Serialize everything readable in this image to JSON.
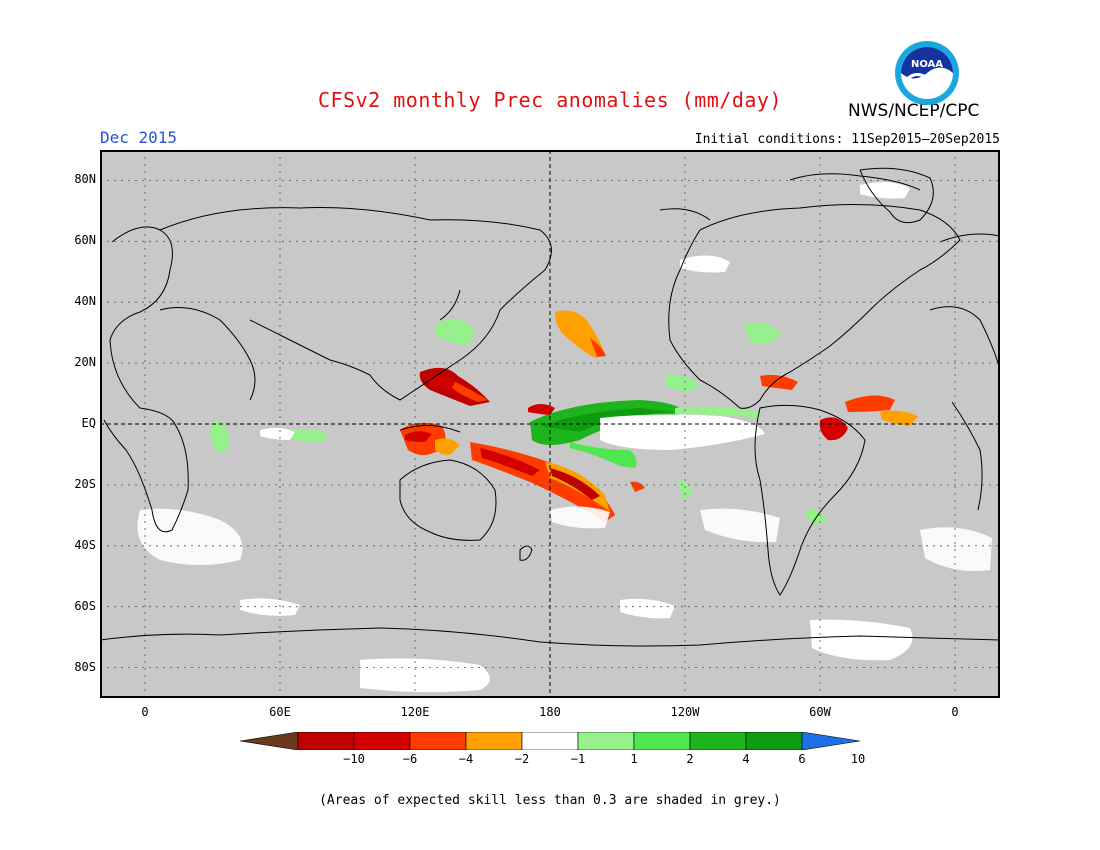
{
  "header": {
    "title": "CFSv2 monthly Prec anomalies (mm/day)",
    "month": "Dec 2015",
    "initial_conditions": "Initial conditions: 11Sep2015–20Sep2015",
    "org": "NWS/NCEP/CPC",
    "logo_text": "NOAA"
  },
  "map": {
    "projection": "cylindrical equidistant",
    "lon_range": [
      -20,
      380
    ],
    "lat_range": [
      -90,
      90
    ],
    "y_ticks": [
      {
        "lat": 80,
        "label": "80N"
      },
      {
        "lat": 60,
        "label": "60N"
      },
      {
        "lat": 40,
        "label": "40N"
      },
      {
        "lat": 20,
        "label": "20N"
      },
      {
        "lat": 0,
        "label": "EQ"
      },
      {
        "lat": -20,
        "label": "20S"
      },
      {
        "lat": -40,
        "label": "40S"
      },
      {
        "lat": -60,
        "label": "60S"
      },
      {
        "lat": -80,
        "label": "80S"
      }
    ],
    "x_ticks": [
      {
        "lon": 0,
        "label": "0"
      },
      {
        "lon": 60,
        "label": "60E"
      },
      {
        "lon": 120,
        "label": "120E"
      },
      {
        "lon": 180,
        "label": "180"
      },
      {
        "lon": 240,
        "label": "120W"
      },
      {
        "lon": 300,
        "label": "60W"
      },
      {
        "lon": 360,
        "label": "0"
      }
    ],
    "background_color": "#c8c8c8",
    "grid": "dotted"
  },
  "colorbar": {
    "labels": [
      "−10",
      "−6",
      "−4",
      "−2",
      "−1",
      "1",
      "2",
      "4",
      "6",
      "10"
    ],
    "colors": [
      "#6b3a1e",
      "#c00000",
      "#d40000",
      "#ff3c00",
      "#ffa000",
      "#ffffff",
      "#96f08c",
      "#50e650",
      "#1eb41e",
      "#0f9b0f",
      "#1e6ee6"
    ]
  },
  "footnote": "(Areas of expected skill less than 0.3 are shaded in grey.)"
}
